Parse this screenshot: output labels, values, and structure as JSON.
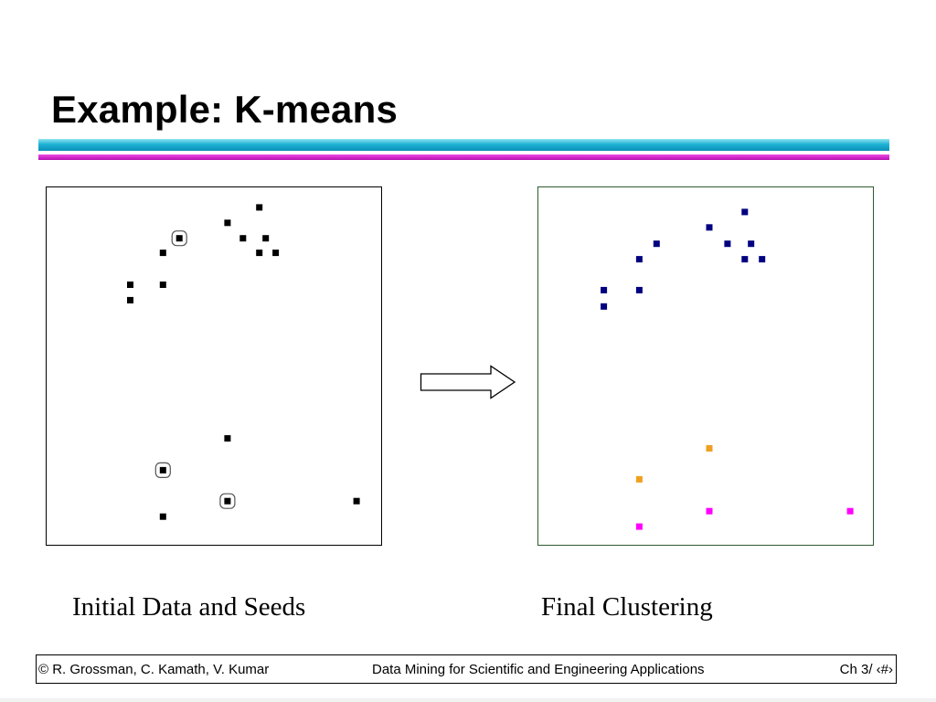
{
  "slide": {
    "title": "Example: K-means",
    "caption_left": "Initial Data and Seeds",
    "caption_right": "Final Clustering"
  },
  "footer": {
    "left": "© R. Grossman, C. Kamath, V. Kumar",
    "center": "Data Mining for Scientific and Engineering Applications",
    "right": "Ch 3/ ‹#›"
  },
  "colors": {
    "title_bar": "#1fb3d6",
    "accent_bar": "#c21bbd",
    "points_initial": "#000000",
    "cluster_1": "#000080",
    "cluster_2": "#f0a020",
    "cluster_3": "#ff00ff"
  },
  "chart_data": [
    {
      "type": "scatter",
      "xlim": [
        0,
        368
      ],
      "ylim": [
        0,
        393
      ],
      "points": [
        {
          "x": 234,
          "y": 371
        },
        {
          "x": 199,
          "y": 354
        },
        {
          "x": 146,
          "y": 337
        },
        {
          "x": 216,
          "y": 337
        },
        {
          "x": 241,
          "y": 337
        },
        {
          "x": 128,
          "y": 321
        },
        {
          "x": 234,
          "y": 321
        },
        {
          "x": 252,
          "y": 321
        },
        {
          "x": 92,
          "y": 286
        },
        {
          "x": 128,
          "y": 286
        },
        {
          "x": 92,
          "y": 269
        },
        {
          "x": 199,
          "y": 117
        },
        {
          "x": 128,
          "y": 82
        },
        {
          "x": 199,
          "y": 48
        },
        {
          "x": 341,
          "y": 48
        },
        {
          "x": 128,
          "y": 31
        }
      ],
      "seeds": [
        {
          "x": 146,
          "y": 337
        },
        {
          "x": 128,
          "y": 82
        },
        {
          "x": 199,
          "y": 48
        }
      ]
    },
    {
      "type": "scatter",
      "xlim": [
        0,
        368
      ],
      "ylim": [
        0,
        393
      ],
      "series": [
        {
          "color": "#000080",
          "points": [
            {
              "x": 227,
              "y": 366
            },
            {
              "x": 188,
              "y": 349
            },
            {
              "x": 130,
              "y": 331
            },
            {
              "x": 208,
              "y": 331
            },
            {
              "x": 234,
              "y": 331
            },
            {
              "x": 111,
              "y": 314
            },
            {
              "x": 227,
              "y": 314
            },
            {
              "x": 246,
              "y": 314
            },
            {
              "x": 72,
              "y": 280
            },
            {
              "x": 111,
              "y": 280
            },
            {
              "x": 72,
              "y": 262
            }
          ]
        },
        {
          "color": "#f0a020",
          "points": [
            {
              "x": 188,
              "y": 106
            },
            {
              "x": 111,
              "y": 72
            }
          ]
        },
        {
          "color": "#ff00ff",
          "points": [
            {
              "x": 188,
              "y": 37
            },
            {
              "x": 343,
              "y": 37
            },
            {
              "x": 111,
              "y": 20
            }
          ]
        }
      ]
    }
  ]
}
